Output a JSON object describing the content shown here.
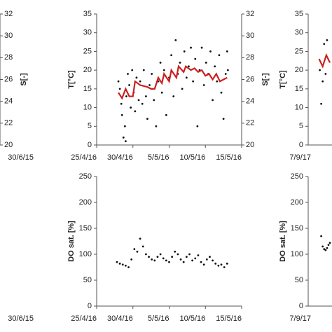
{
  "chart_data": [
    {
      "type": "scatter",
      "y2label": "S[-]",
      "y2lim": [
        20,
        32
      ],
      "y2ticks": [
        20,
        22,
        24,
        26,
        28,
        30,
        32
      ],
      "xtick_labels": [
        "30/6/15"
      ]
    },
    {
      "type": "scatter",
      "ylabel": "T[°C]",
      "ylim": [
        0,
        35
      ],
      "yticks": [
        0,
        5,
        10,
        15,
        20,
        25,
        30,
        35
      ],
      "y2label": "S[-]",
      "y2lim": [
        20,
        32
      ],
      "y2ticks": [
        20,
        22,
        24,
        26,
        28,
        30,
        32
      ],
      "xlim": [
        0,
        20
      ],
      "xticks": [
        {
          "value": 0,
          "label": "25/4/16"
        },
        {
          "value": 5,
          "label": "30/4/16"
        },
        {
          "value": 10,
          "label": "5/5/16"
        },
        {
          "value": 15,
          "label": "10/5/16"
        },
        {
          "value": 20,
          "label": "15/5/16"
        }
      ],
      "series": [
        {
          "style": "dots",
          "color": "#111111",
          "x": [
            3,
            3.2,
            3.4,
            3.5,
            3.7,
            3.9,
            4,
            4.1,
            4.3,
            4.5,
            4.7,
            4.9,
            5.1,
            5.3,
            5.5,
            5.8,
            6,
            6.3,
            6.5,
            6.8,
            7,
            7.3,
            7.6,
            7.9,
            8.2,
            8.5,
            8.8,
            9,
            9.3,
            9.6,
            10,
            10.3,
            10.6,
            10.9,
            11.2,
            11.5,
            11.8,
            12.1,
            12.4,
            12.7,
            13,
            13.3,
            13.6,
            13.9,
            14.2,
            14.5,
            14.8,
            15.1,
            15.4,
            15.7,
            16,
            16.3,
            16.6,
            16.9,
            17.2,
            17.5,
            17.8,
            18,
            18.1
          ],
          "values": [
            17,
            15,
            11,
            8,
            2,
            5,
            1,
            13,
            19,
            16,
            10,
            20,
            14,
            9,
            18,
            12,
            17,
            11,
            20,
            13,
            7,
            16,
            19,
            12,
            5,
            17,
            22,
            14,
            20,
            8,
            18,
            24,
            13,
            28,
            19,
            22,
            15,
            25,
            18,
            21,
            26,
            17,
            23,
            5,
            20,
            26,
            16,
            22,
            19,
            25,
            12,
            21,
            17,
            24,
            14,
            7,
            19,
            25,
            20
          ]
        },
        {
          "style": "line",
          "color": "#cc1f1f",
          "x": [
            3,
            3.5,
            4,
            4.5,
            5,
            5.3,
            6,
            7,
            7.5,
            8,
            8.5,
            9,
            9.3,
            10,
            10.3,
            11,
            11.3,
            12,
            12.3,
            13,
            13.5,
            14,
            14.5,
            15,
            15.5,
            16,
            16.5,
            17,
            17.5,
            18
          ],
          "values": [
            14,
            12.5,
            15,
            13,
            13,
            17,
            16,
            15.5,
            15,
            15,
            18,
            16.5,
            19,
            17,
            20,
            18,
            21,
            19.5,
            21,
            20,
            20.5,
            19.5,
            20,
            18.5,
            19,
            17.5,
            19,
            17,
            17.5,
            18
          ]
        }
      ]
    },
    {
      "type": "scatter",
      "ylabel": "T[°C]",
      "ylim": [
        0,
        35
      ],
      "yticks": [
        0,
        5,
        10,
        15,
        20,
        25,
        30,
        35
      ],
      "xlim": [
        0,
        20
      ],
      "xtick_labels": [
        "7/9/17"
      ],
      "series": [
        {
          "style": "dots",
          "color": "#111111",
          "x": [
            1.6,
            1.8,
            2.0,
            2.2,
            2.4,
            2.6
          ],
          "values": [
            20,
            11,
            17,
            27,
            19,
            28
          ]
        },
        {
          "style": "line",
          "color": "#cc1f1f",
          "x": [
            1.5,
            2,
            2.5,
            3
          ],
          "values": [
            23,
            21,
            24,
            22
          ]
        }
      ]
    },
    {
      "type": "scatter",
      "xtick_labels": [
        "30/6/15"
      ]
    },
    {
      "type": "scatter",
      "ylabel": "DO sat. [%]",
      "ylim": [
        0,
        250
      ],
      "yticks": [
        0,
        50,
        100,
        150,
        200,
        250
      ],
      "xlim": [
        0,
        20
      ],
      "xticks": [
        {
          "value": 0,
          "label": "25/4/16"
        },
        {
          "value": 5,
          "label": "30/4/16"
        },
        {
          "value": 10,
          "label": "5/5/16"
        },
        {
          "value": 15,
          "label": "10/5/16"
        },
        {
          "value": 20,
          "label": "15/5/16"
        }
      ],
      "series": [
        {
          "style": "dots",
          "color": "#111111",
          "x": [
            2.8,
            3.2,
            3.6,
            4.0,
            4.4,
            4.8,
            5.2,
            5.6,
            6.0,
            6.4,
            6.8,
            7.2,
            7.6,
            8.0,
            8.4,
            8.8,
            9.2,
            9.6,
            10.0,
            10.4,
            10.8,
            11.2,
            11.6,
            12.0,
            12.4,
            12.8,
            13.2,
            13.6,
            14.0,
            14.4,
            14.8,
            15.2,
            15.6,
            16.0,
            16.4,
            16.8,
            17.2,
            17.6,
            18.0
          ],
          "values": [
            85,
            82,
            80,
            78,
            75,
            90,
            110,
            105,
            130,
            115,
            100,
            95,
            90,
            88,
            95,
            100,
            92,
            88,
            85,
            95,
            105,
            100,
            90,
            85,
            95,
            100,
            88,
            92,
            98,
            85,
            80,
            90,
            95,
            88,
            82,
            78,
            80,
            75,
            82
          ]
        }
      ]
    },
    {
      "type": "scatter",
      "ylabel": "DO sat. [%]",
      "ylim": [
        0,
        250
      ],
      "yticks": [
        0,
        50,
        100,
        150,
        200,
        250
      ],
      "xlim": [
        0,
        20
      ],
      "xtick_labels": [
        "7/9/17"
      ],
      "series": [
        {
          "style": "dots",
          "color": "#111111",
          "x": [
            1.8,
            2.0,
            2.2,
            2.4,
            2.6,
            2.8,
            3.0
          ],
          "values": [
            135,
            115,
            110,
            108,
            112,
            118,
            122
          ]
        }
      ]
    }
  ]
}
